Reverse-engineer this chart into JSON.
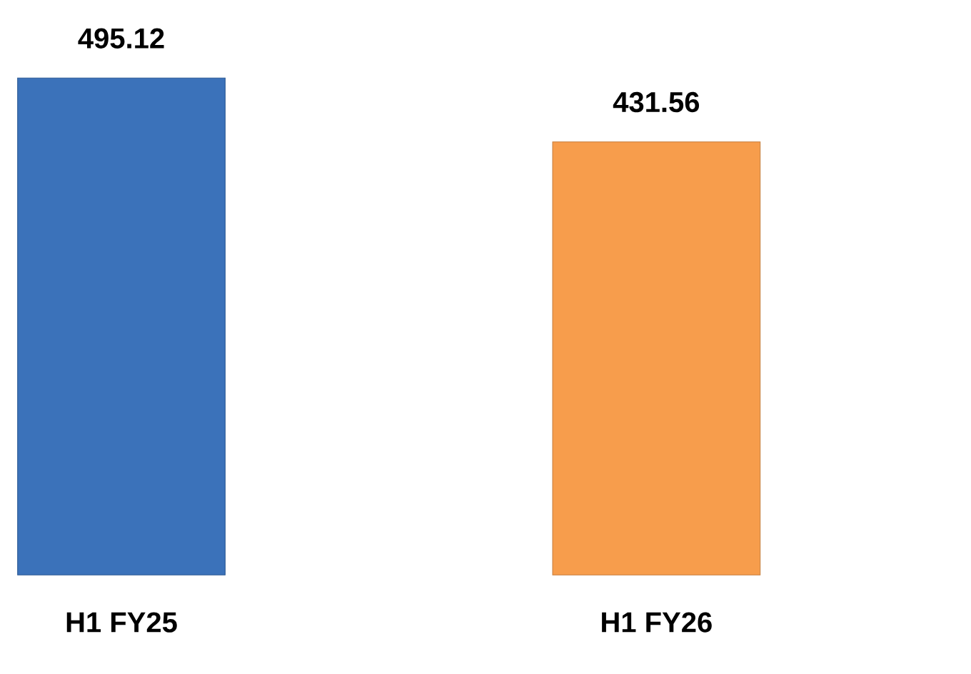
{
  "chart_data": {
    "type": "bar",
    "categories": [
      "H1 FY25",
      "H1 FY26"
    ],
    "values": [
      495.12,
      431.56
    ],
    "colors": [
      "#3b72ba",
      "#f79d4c"
    ],
    "data_labels": true
  }
}
